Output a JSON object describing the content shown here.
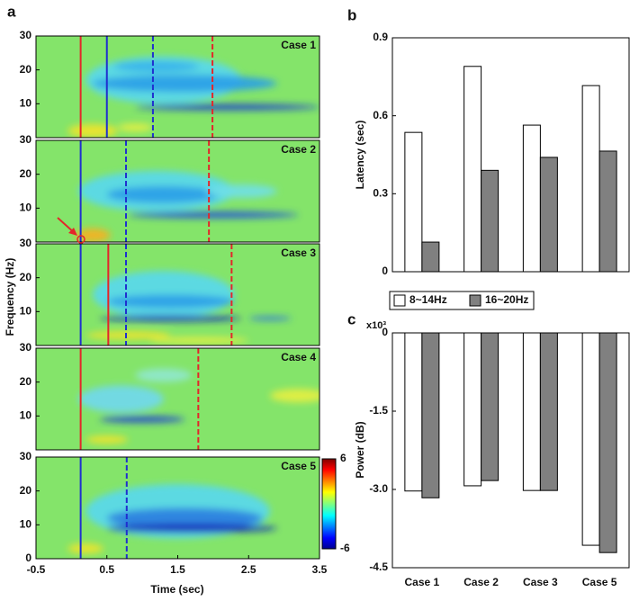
{
  "chart_data": [
    {
      "type": "spectrogram",
      "label": "a",
      "xlabel": "Time (sec)",
      "ylabel": "Frequency (Hz)",
      "xlim": [
        -0.5,
        3.5
      ],
      "xticks": [
        -0.5,
        0.5,
        1.5,
        2.5,
        3.5
      ],
      "ylim": [
        0,
        30
      ],
      "clim": [
        -6,
        6
      ],
      "cticks": [
        -6,
        6
      ],
      "panels": [
        {
          "title": "Case 1",
          "yticks": [
            10,
            20,
            30
          ],
          "lines": [
            {
              "x": 0.13,
              "color": "#e3262a",
              "dashed": false
            },
            {
              "x": 0.5,
              "color": "#1f2fcf",
              "dashed": false
            },
            {
              "x": 1.15,
              "color": "#1f2fcf",
              "dashed": true
            },
            {
              "x": 1.99,
              "color": "#e3262a",
              "dashed": true
            }
          ]
        },
        {
          "title": "Case 2",
          "yticks": [
            10,
            20,
            30
          ],
          "lines": [
            {
              "x": 0.13,
              "color": "#1f2fcf",
              "dashed": false
            },
            {
              "x": 0.77,
              "color": "#1f2fcf",
              "dashed": true
            },
            {
              "x": 1.94,
              "color": "#e3262a",
              "dashed": true
            }
          ]
        },
        {
          "title": "Case 3",
          "yticks": [
            10,
            20,
            30
          ],
          "lines": [
            {
              "x": 0.13,
              "color": "#1f2fcf",
              "dashed": false
            },
            {
              "x": 0.52,
              "color": "#e3262a",
              "dashed": false
            },
            {
              "x": 0.77,
              "color": "#1f2fcf",
              "dashed": true
            },
            {
              "x": 2.26,
              "color": "#e3262a",
              "dashed": true
            }
          ]
        },
        {
          "title": "Case 4",
          "yticks": [
            10,
            20,
            30
          ],
          "lines": [
            {
              "x": 0.13,
              "color": "#e3262a",
              "dashed": false
            },
            {
              "x": 1.79,
              "color": "#e3262a",
              "dashed": true
            }
          ]
        },
        {
          "title": "Case 5",
          "yticks": [
            0,
            10,
            20,
            30
          ],
          "lines": [
            {
              "x": 0.13,
              "color": "#1f2fcf",
              "dashed": false
            },
            {
              "x": 0.78,
              "color": "#1f2fcf",
              "dashed": true
            }
          ]
        }
      ]
    },
    {
      "type": "bar",
      "label": "b",
      "ylabel": "Latency (sec)",
      "categories": [
        null,
        null,
        null,
        null
      ],
      "series": [
        {
          "name": "8~14Hz",
          "color": "#ffffff",
          "values": [
            0.536,
            0.79,
            0.564,
            0.716
          ]
        },
        {
          "name": "16~20Hz",
          "color": "#808080",
          "values": [
            0.114,
            0.39,
            0.44,
            0.464
          ]
        }
      ],
      "ylim": [
        0,
        0.9
      ],
      "yticks": [
        0,
        0.3,
        0.6,
        0.9
      ]
    },
    {
      "type": "bar",
      "label": "c",
      "ylabel": "Power (dB)",
      "axis_multiplier": "x10³",
      "categories": [
        "Case 1",
        "Case 2",
        "Case 3",
        "Case 5"
      ],
      "series": [
        {
          "color": "#ffffff",
          "values": [
            -3.03,
            -2.93,
            -3.02,
            -4.07
          ]
        },
        {
          "color": "#808080",
          "values": [
            -3.16,
            -2.83,
            -3.02,
            -4.21
          ]
        }
      ],
      "ylim": [
        -4.5,
        0
      ],
      "yticks": [
        0,
        -1.5,
        {
          "value": -3,
          "label": "-3.0"
        },
        -4.5
      ]
    }
  ]
}
